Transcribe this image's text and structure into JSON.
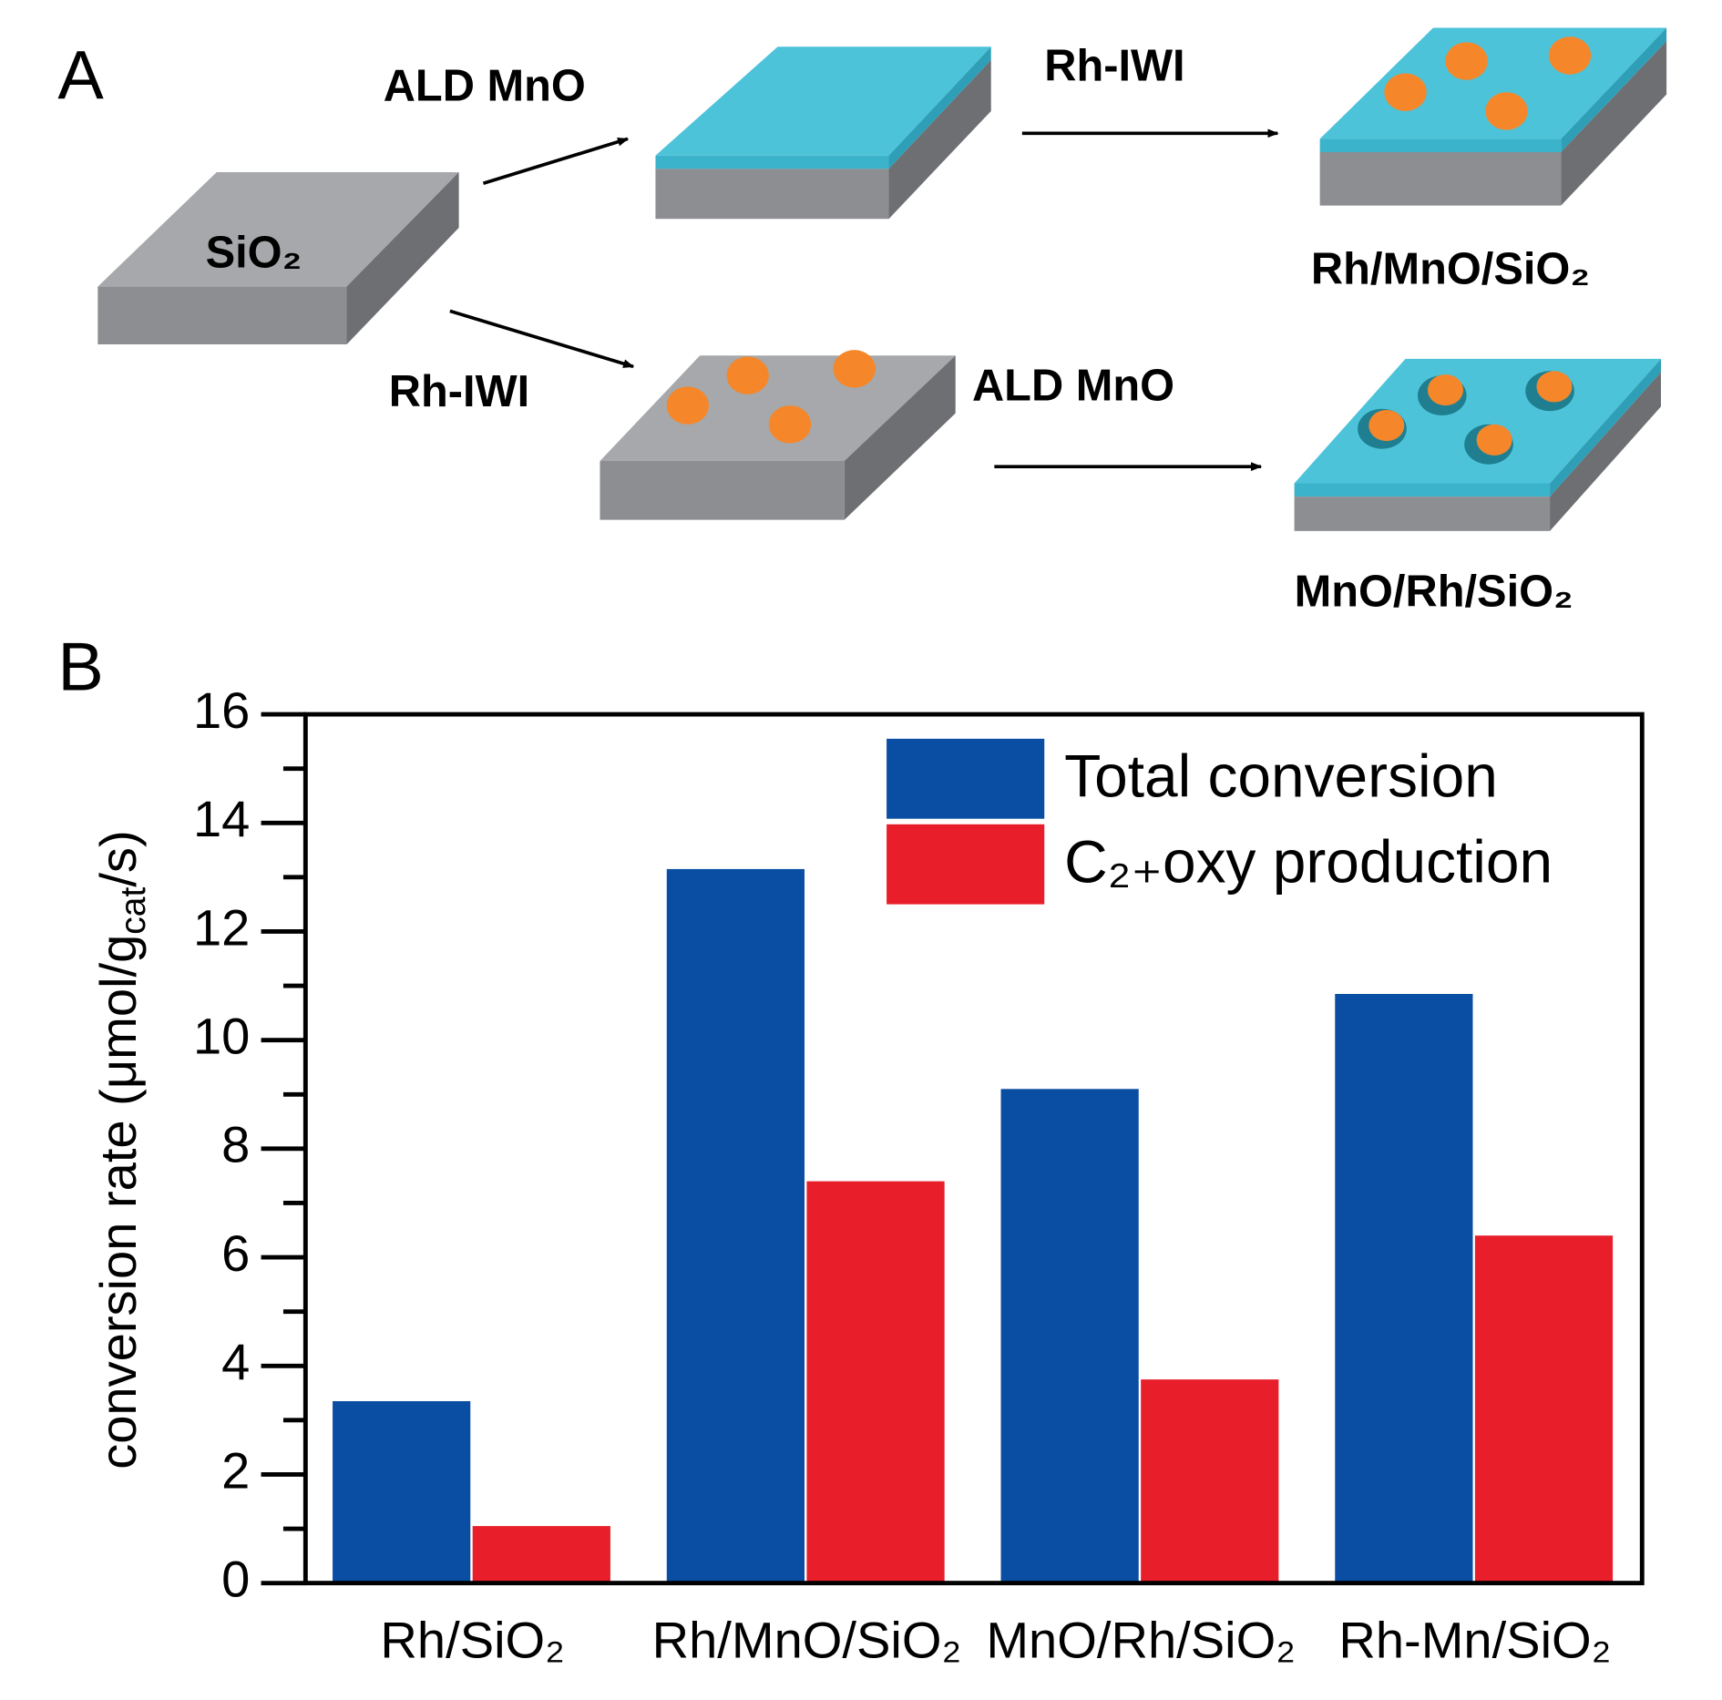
{
  "diagram": {
    "panel_a": "A",
    "substrate": "SiO₂",
    "step_top_1": "ALD MnO",
    "step_top_2": "Rh-IWI",
    "product_top": "Rh/MnO/SiO₂",
    "step_bottom_1": "Rh-IWI",
    "step_bottom_2": "ALD MnO",
    "product_bottom": "MnO/Rh/SiO₂",
    "panel_b": "B"
  },
  "chart_data": {
    "type": "bar",
    "ylabel": "conversion rate (μmol/g",
    "ylabel_sub": "cat",
    "ylabel_end": "/s)",
    "categories": [
      "Rh/SiO₂",
      "Rh/MnO/SiO₂",
      "MnO/Rh/SiO₂",
      "Rh-Mn/SiO₂"
    ],
    "series": [
      {
        "name": "Total conversion",
        "color": "#0a4ea3",
        "values": [
          3.35,
          13.15,
          9.1,
          10.85
        ]
      },
      {
        "name": "C₂₊oxy production",
        "color": "#e81e2b",
        "values": [
          1.05,
          7.4,
          3.75,
          6.4
        ]
      }
    ],
    "ylim": [
      0,
      16
    ],
    "yticks": [
      0,
      2,
      4,
      6,
      8,
      10,
      12,
      14,
      16
    ],
    "yticks_minor": [
      1,
      3,
      5,
      7,
      9,
      11,
      13,
      15
    ],
    "legend": "upper right"
  }
}
